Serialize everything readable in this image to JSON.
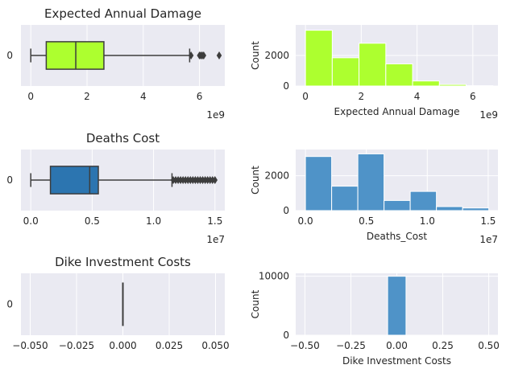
{
  "chart_data": [
    {
      "type": "box",
      "title": "Expected Annual Damage",
      "category_label": "0",
      "offset_label": "1e9",
      "color": "#adff2f",
      "xlim": [
        -0.35,
        6.9
      ],
      "xticks": [
        0,
        2,
        4,
        6
      ],
      "stats": {
        "min": 0.0,
        "q1": 0.55,
        "median": 1.6,
        "q3": 2.6,
        "max": 5.65
      },
      "outliers": [
        5.7,
        6.0,
        6.05,
        6.1,
        6.15,
        6.7
      ]
    },
    {
      "type": "bar",
      "xlabel": "Expected Annual Damage",
      "ylabel": "Count",
      "offset_label": "1e9",
      "color": "#adff2f",
      "xlim": [
        -0.35,
        6.9
      ],
      "ylim": [
        0,
        4000
      ],
      "xticks": [
        0,
        2,
        4,
        6
      ],
      "yticks": [
        0,
        2000
      ],
      "bin_edges": [
        0,
        0.96,
        1.92,
        2.88,
        3.84,
        4.8,
        5.76,
        6.72
      ],
      "values": [
        3650,
        1850,
        2800,
        1450,
        330,
        100,
        20
      ]
    },
    {
      "type": "box",
      "title": "Deaths Cost",
      "category_label": "0",
      "offset_label": "1e7",
      "color": "#2c75b0",
      "xlim": [
        -0.08,
        1.58
      ],
      "xticks": [
        0.0,
        0.5,
        1.0,
        1.5
      ],
      "stats": {
        "min": 0.0,
        "q1": 0.16,
        "median": 0.48,
        "q3": 0.55,
        "max": 1.15
      },
      "outliers": [
        1.16,
        1.18,
        1.2,
        1.22,
        1.24,
        1.26,
        1.28,
        1.3,
        1.32,
        1.34,
        1.36,
        1.38,
        1.4,
        1.42,
        1.44,
        1.46,
        1.48,
        1.5
      ]
    },
    {
      "type": "bar",
      "xlabel": "Deaths_Cost",
      "ylabel": "Count",
      "offset_label": "1e7",
      "color": "#4f93c8",
      "xlim": [
        -0.08,
        1.58
      ],
      "ylim": [
        0,
        3500
      ],
      "xticks": [
        0.0,
        0.5,
        1.0,
        1.5
      ],
      "yticks": [
        0,
        2000
      ],
      "bin_edges": [
        0,
        0.215,
        0.43,
        0.645,
        0.86,
        1.075,
        1.29,
        1.505
      ],
      "values": [
        3100,
        1400,
        3250,
        580,
        1100,
        230,
        150
      ]
    },
    {
      "type": "box",
      "title": "Dike Investment Costs",
      "category_label": "0",
      "offset_label": "",
      "color": "#4f93c8",
      "xlim": [
        -0.055,
        0.055
      ],
      "xticks": [
        -0.05,
        -0.025,
        0.0,
        0.025,
        0.05
      ],
      "xtick_labels": [
        "−0.050",
        "−0.025",
        "0.000",
        "0.025",
        "0.050"
      ],
      "stats": {
        "min": 0,
        "q1": 0,
        "median": 0,
        "q3": 0,
        "max": 0
      },
      "outliers": []
    },
    {
      "type": "bar",
      "xlabel": "Dike Investment Costs",
      "ylabel": "Count",
      "offset_label": "",
      "color": "#4f93c8",
      "xlim": [
        -0.55,
        0.55
      ],
      "ylim": [
        0,
        10500
      ],
      "xticks": [
        -0.5,
        -0.25,
        0.0,
        0.25,
        0.5
      ],
      "xtick_labels": [
        "−0.50",
        "−0.25",
        "0.00",
        "0.25",
        "0.50"
      ],
      "yticks": [
        0,
        10000
      ],
      "bin_edges": [
        -0.05,
        0.05
      ],
      "values": [
        10000
      ]
    }
  ]
}
